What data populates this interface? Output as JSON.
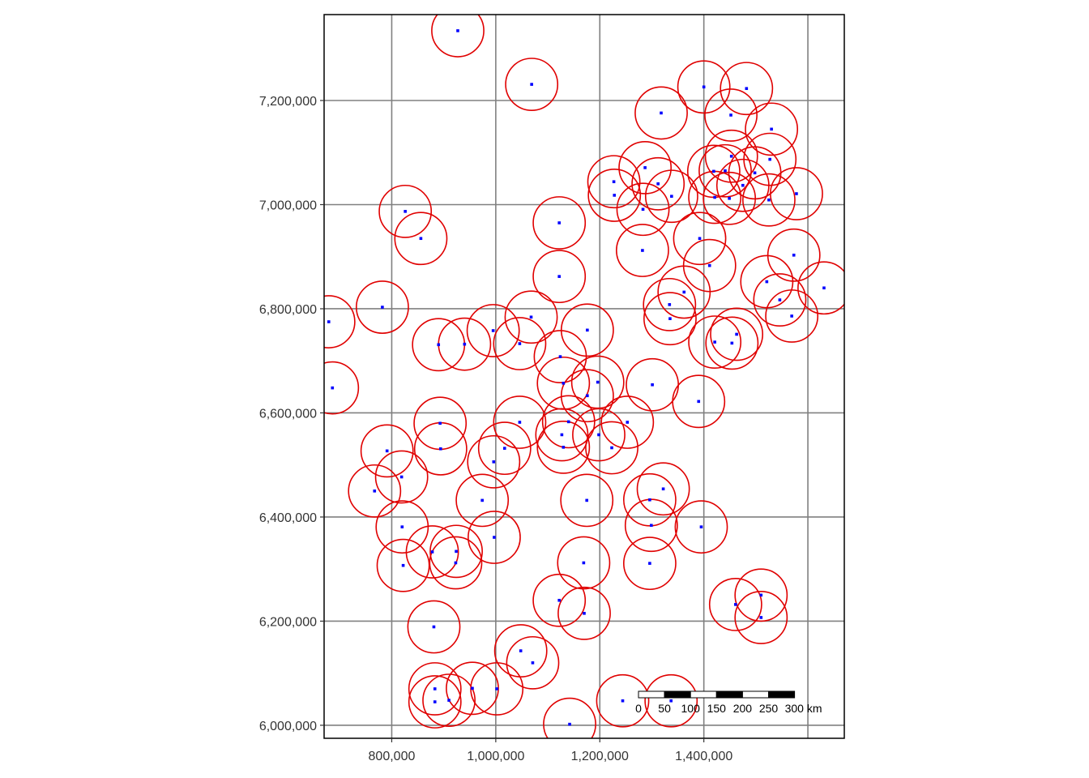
{
  "map": {
    "crs_units": "m",
    "extent": {
      "xmin": 670000,
      "xmax": 1670000,
      "ymin": 5975000,
      "ymax": 7365000
    },
    "grid": true,
    "grid_color": "#808080",
    "x_ticks": [
      {
        "value": 800000,
        "label": "800,000"
      },
      {
        "value": 1000000,
        "label": "1,000,000"
      },
      {
        "value": 1200000,
        "label": "1,200,000"
      },
      {
        "value": 1400000,
        "label": "1,400,000"
      }
    ],
    "x_grid_extra": [
      1600000
    ],
    "y_ticks": [
      {
        "value": 6000000,
        "label": "6,000,000"
      },
      {
        "value": 6200000,
        "label": "6,200,000"
      },
      {
        "value": 6400000,
        "label": "6,400,000"
      },
      {
        "value": 6600000,
        "label": "6,600,000"
      },
      {
        "value": 6800000,
        "label": "6,800,000"
      },
      {
        "value": 7000000,
        "label": "7,000,000"
      },
      {
        "value": 7200000,
        "label": "7,200,000"
      }
    ],
    "buffer_radius_m": 50000,
    "buffer_color": "#e00000",
    "point_color": "#0000ff",
    "points": [
      [
        927000,
        7334000
      ],
      [
        1069000,
        7231000
      ],
      [
        1400000,
        7226000
      ],
      [
        1482000,
        7223000
      ],
      [
        1318000,
        7176000
      ],
      [
        1452000,
        7172000
      ],
      [
        1530000,
        7145000
      ],
      [
        1453000,
        7093000
      ],
      [
        1527000,
        7087000
      ],
      [
        1287000,
        7071000
      ],
      [
        1441000,
        7065000
      ],
      [
        1498000,
        7061000
      ],
      [
        1419000,
        7064000
      ],
      [
        1227000,
        7044000
      ],
      [
        1312000,
        7040000
      ],
      [
        1475000,
        7037000
      ],
      [
        1228000,
        7018000
      ],
      [
        1338000,
        7016000
      ],
      [
        1421000,
        7014000
      ],
      [
        1449000,
        7012000
      ],
      [
        1525000,
        7009000
      ],
      [
        1578000,
        7021000
      ],
      [
        1283000,
        6991000
      ],
      [
        826000,
        6987000
      ],
      [
        1122000,
        6965000
      ],
      [
        856000,
        6935000
      ],
      [
        1392000,
        6935000
      ],
      [
        1282000,
        6912000
      ],
      [
        1573000,
        6903000
      ],
      [
        1411000,
        6883000
      ],
      [
        1122000,
        6862000
      ],
      [
        1521000,
        6852000
      ],
      [
        1362000,
        6832000
      ],
      [
        1631000,
        6840000
      ],
      [
        1546000,
        6817000
      ],
      [
        1334000,
        6808000
      ],
      [
        782000,
        6803000
      ],
      [
        1569000,
        6786000
      ],
      [
        1068000,
        6784000
      ],
      [
        1335000,
        6781000
      ],
      [
        679000,
        6775000
      ],
      [
        995000,
        6758000
      ],
      [
        1176000,
        6759000
      ],
      [
        1463000,
        6751000
      ],
      [
        1046000,
        6733000
      ],
      [
        1421000,
        6736000
      ],
      [
        1454000,
        6734000
      ],
      [
        890000,
        6731000
      ],
      [
        940000,
        6732000
      ],
      [
        1124000,
        6708000
      ],
      [
        1196000,
        6659000
      ],
      [
        1130000,
        6657000
      ],
      [
        1301000,
        6654000
      ],
      [
        686000,
        6648000
      ],
      [
        1176000,
        6633000
      ],
      [
        1390000,
        6622000
      ],
      [
        1253000,
        6582000
      ],
      [
        1046000,
        6582000
      ],
      [
        1140000,
        6583000
      ],
      [
        893000,
        6580000
      ],
      [
        1198000,
        6558000
      ],
      [
        1127000,
        6558000
      ],
      [
        1130000,
        6534000
      ],
      [
        1223000,
        6533000
      ],
      [
        1017000,
        6532000
      ],
      [
        894000,
        6531000
      ],
      [
        791000,
        6527000
      ],
      [
        996000,
        6506000
      ],
      [
        819000,
        6477000
      ],
      [
        1322000,
        6454000
      ],
      [
        767000,
        6450000
      ],
      [
        1175000,
        6432000
      ],
      [
        1296000,
        6433000
      ],
      [
        974000,
        6432000
      ],
      [
        1299000,
        6384000
      ],
      [
        1395000,
        6381000
      ],
      [
        820000,
        6381000
      ],
      [
        997000,
        6361000
      ],
      [
        878000,
        6333000
      ],
      [
        924000,
        6334000
      ],
      [
        1169000,
        6312000
      ],
      [
        1296000,
        6311000
      ],
      [
        923000,
        6312000
      ],
      [
        822000,
        6307000
      ],
      [
        1510000,
        6250000
      ],
      [
        1122000,
        6240000
      ],
      [
        1461000,
        6232000
      ],
      [
        1510000,
        6207000
      ],
      [
        1170000,
        6215000
      ],
      [
        881000,
        6189000
      ],
      [
        1048000,
        6143000
      ],
      [
        1071000,
        6120000
      ],
      [
        1337000,
        6047000
      ],
      [
        1244000,
        6047000
      ],
      [
        955000,
        6071000
      ],
      [
        883000,
        6070000
      ],
      [
        1002000,
        6070000
      ],
      [
        883000,
        6045000
      ],
      [
        910000,
        6048000
      ],
      [
        1142000,
        6002000
      ]
    ],
    "scale_bar": {
      "labels": [
        "0",
        "50",
        "100",
        "150",
        "200",
        "250",
        "300 km"
      ],
      "segment_km": 50,
      "segments": 6,
      "colors": [
        "#ffffff",
        "#000000"
      ]
    }
  }
}
